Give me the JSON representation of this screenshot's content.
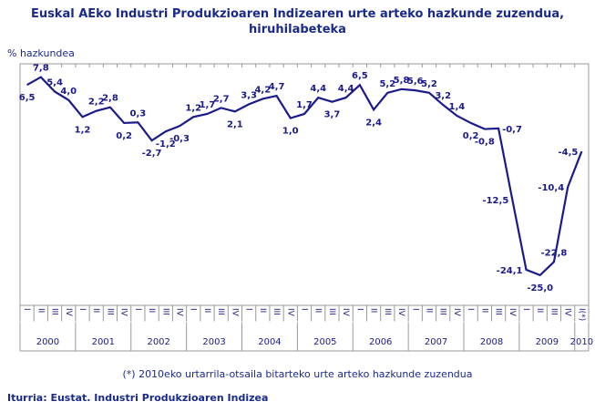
{
  "chart_data": {
    "type": "line",
    "title": "Euskal AEko Industri Produkzioaren Indizearen urte arteko hazkunde zuzendua, hiruhilabeteka",
    "ylabel": "% hazkundea",
    "years": [
      "2000",
      "2001",
      "2002",
      "2003",
      "2004",
      "2005",
      "2006",
      "2007",
      "2008",
      "2009",
      "2010"
    ],
    "quarter_labels": [
      "I",
      "II",
      "III",
      "IV"
    ],
    "last_label": "I(*)",
    "values": [
      6.5,
      7.8,
      5.4,
      4.0,
      1.2,
      2.2,
      2.8,
      0.2,
      0.3,
      -2.7,
      -1.2,
      -0.3,
      1.2,
      1.7,
      2.7,
      2.1,
      3.3,
      4.2,
      4.7,
      1.0,
      1.7,
      4.4,
      3.7,
      4.4,
      6.5,
      2.4,
      5.2,
      5.8,
      5.6,
      5.2,
      3.2,
      1.4,
      0.2,
      -0.8,
      -0.7,
      -12.5,
      -24.1,
      -25.0,
      -22.8,
      -10.4,
      -4.5
    ],
    "ylim": [
      -30,
      10
    ],
    "grid": false,
    "line_color": "#1a1a8c",
    "note": "(*) 2010eko urtarrila-otsaila bitarteko urte arteko hazkunde zuzendua",
    "source": "Iturria: Eustat. Industri Produkzioaren Indizea"
  }
}
